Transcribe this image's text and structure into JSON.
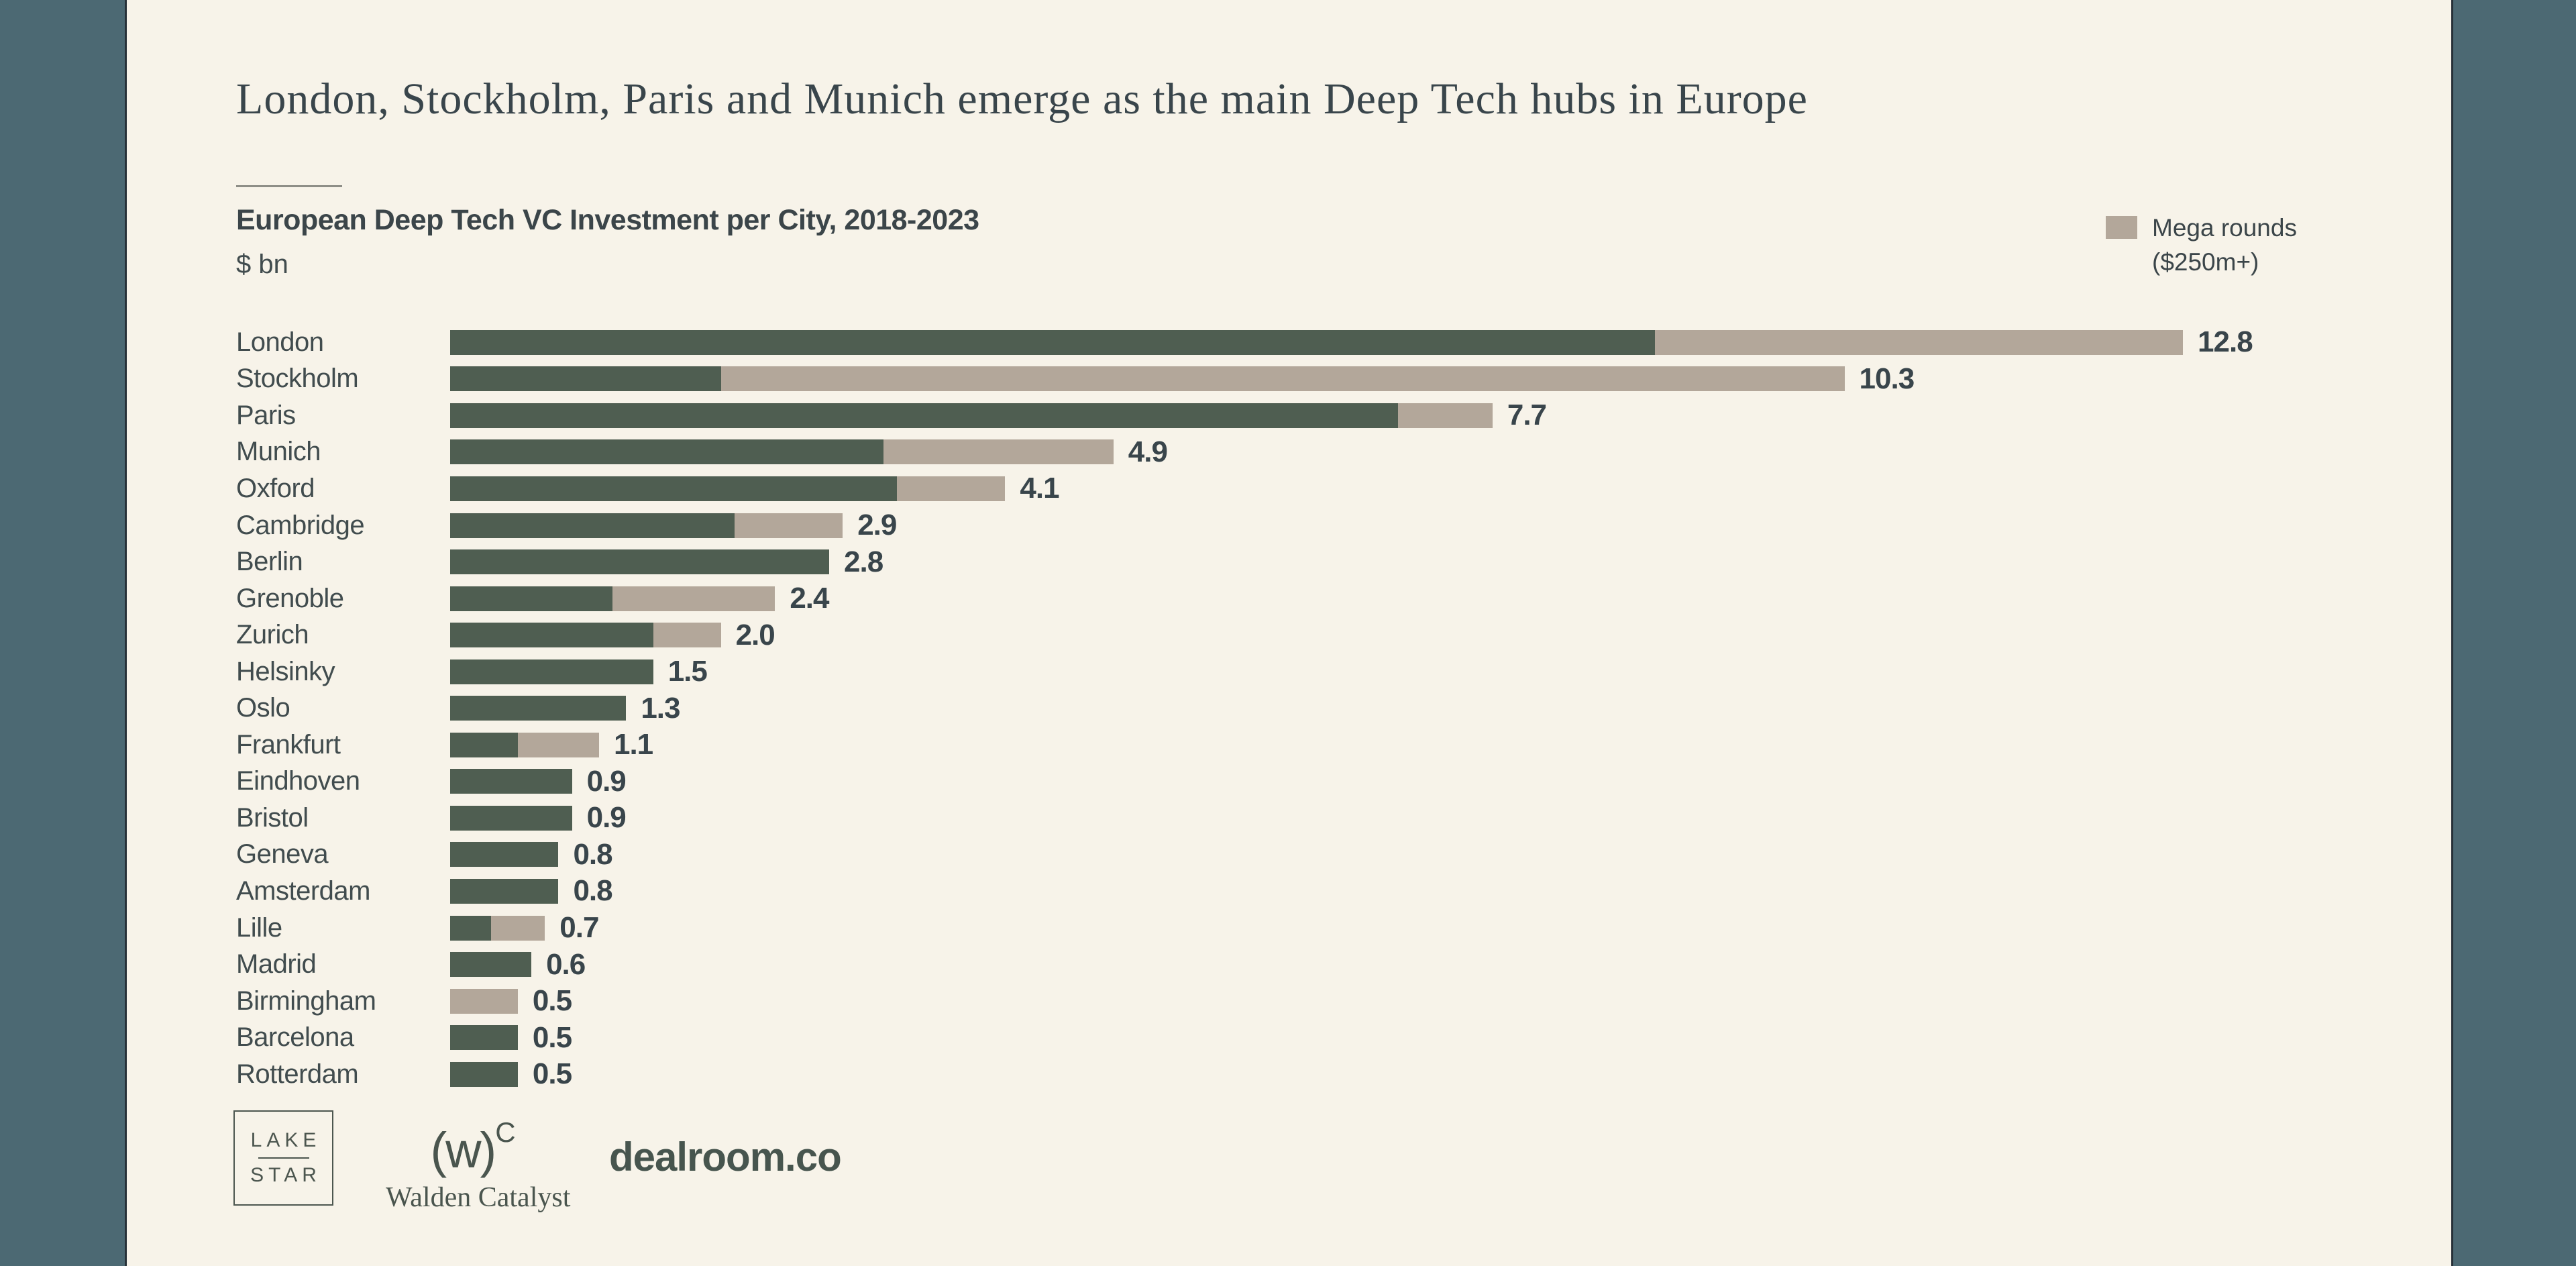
{
  "page": {
    "headline": "London, Stockholm, Paris and Munich emerge as the main Deep Tech hubs in Europe"
  },
  "chart": {
    "title": "European Deep Tech VC Investment per City, 2018-2023",
    "unit": "$ bn",
    "legend": {
      "line1": "Mega rounds",
      "line2": "($250m+)",
      "swatch_color": "#b3a79a"
    }
  },
  "chart_data": {
    "type": "bar",
    "orientation": "horizontal",
    "stacked": true,
    "title": "European Deep Tech VC Investment per City, 2018-2023",
    "unit": "$ bn",
    "grid": false,
    "legend_position": "top-right",
    "xlim": [
      0,
      13.5
    ],
    "categories": [
      "London",
      "Stockholm",
      "Paris",
      "Munich",
      "Oxford",
      "Cambridge",
      "Berlin",
      "Grenoble",
      "Zurich",
      "Helsinky",
      "Oslo",
      "Frankfurt",
      "Eindhoven",
      "Bristol",
      "Geneva",
      "Amsterdam",
      "Lille",
      "Madrid",
      "Birmingham",
      "Barcelona",
      "Rotterdam"
    ],
    "series": [
      {
        "name": "VC investment",
        "color": "#4f5e51",
        "values": [
          8.9,
          2.0,
          7.0,
          3.2,
          3.3,
          2.1,
          2.8,
          1.2,
          1.5,
          1.5,
          1.3,
          0.5,
          0.9,
          0.9,
          0.8,
          0.8,
          0.3,
          0.6,
          0.0,
          0.5,
          0.5
        ]
      },
      {
        "name": "Mega rounds ($250m+)",
        "color": "#b3a79a",
        "values": [
          3.9,
          8.3,
          0.7,
          1.7,
          0.8,
          0.8,
          0.0,
          1.2,
          0.5,
          0.0,
          0.0,
          0.6,
          0.0,
          0.0,
          0.0,
          0.0,
          0.4,
          0.0,
          0.5,
          0.0,
          0.0
        ]
      }
    ],
    "totals": [
      "12.8",
      "10.3",
      "7.7",
      "4.9",
      "4.1",
      "2.9",
      "2.8",
      "2.4",
      "2.0",
      "1.5",
      "1.3",
      "1.1",
      "0.9",
      "0.9",
      "0.8",
      "0.8",
      "0.7",
      "0.6",
      "0.5",
      "0.5",
      "0.5"
    ]
  },
  "logos": {
    "lakestar_line1": "LAKE",
    "lakestar_line2": "STAR",
    "walden_mark": "(w)",
    "walden_mark_sup": "C",
    "walden_name": "Walden Catalyst",
    "dealroom": "dealroom.co"
  },
  "colors": {
    "background": "#f7f3e9",
    "side_rail": "#4c6973",
    "bar_main": "#4f5e51",
    "bar_mega": "#b3a79a",
    "text": "#3a464b"
  }
}
